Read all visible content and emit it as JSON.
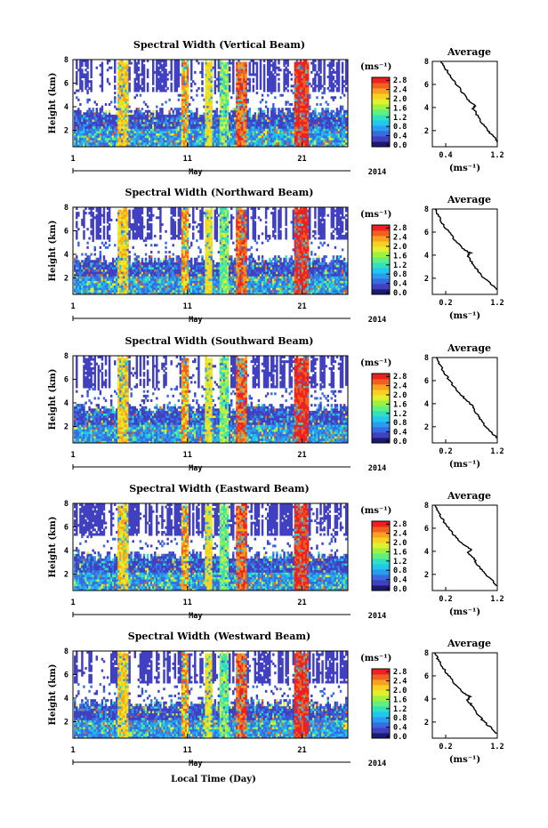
{
  "figure": {
    "xlabel": "Local Time (Day)",
    "month_label": "May",
    "year_label": "2014",
    "ylabel": "Height (km)",
    "colorbar_unit": "(ms⁻¹)",
    "profile_title": "Average",
    "profile_xlabel": "(ms⁻¹)"
  },
  "chart_data": [
    {
      "type": "heatmap",
      "title": "Spectral Width (Vertical Beam)",
      "ylabel": "Height (km)",
      "xlabel": "Local Time (Day)",
      "x_ticks": [
        "1",
        "11",
        "21"
      ],
      "y_ticks": [
        "2",
        "4",
        "6",
        "8"
      ],
      "ylim": [
        0.6,
        8
      ],
      "xlim": [
        1,
        25
      ],
      "colorbar": {
        "ticks": [
          "0.0",
          "0.4",
          "0.8",
          "1.2",
          "1.6",
          "2.0",
          "2.4",
          "2.8"
        ],
        "range": [
          0,
          3.0
        ],
        "colors": [
          "#1a1a6e",
          "#4040c0",
          "#3a6ae0",
          "#2a9cf0",
          "#20c8f0",
          "#30e0c0",
          "#60f080",
          "#a0f040",
          "#e0f030",
          "#f8d020",
          "#f8a020",
          "#f06020",
          "#f02020"
        ]
      },
      "profile": {
        "type": "line",
        "title": "Average",
        "xlabel": "(ms⁻¹)",
        "xlim": [
          0.2,
          1.2
        ],
        "x_ticks": [
          "0.4",
          "1.2"
        ],
        "ylim": [
          0.6,
          8
        ],
        "y_ticks": [
          "2",
          "4",
          "6",
          "8"
        ],
        "x": [
          1.2,
          1.15,
          1.05,
          0.98,
          0.92,
          0.88,
          0.82,
          0.86,
          0.76,
          0.68,
          0.6,
          0.52,
          0.45,
          0.38,
          0.34
        ],
        "y": [
          1.0,
          1.5,
          2.0,
          2.5,
          3.0,
          3.5,
          3.9,
          4.2,
          4.6,
          5.2,
          5.8,
          6.4,
          7.0,
          7.5,
          8.0
        ]
      }
    },
    {
      "type": "heatmap",
      "title": "Spectral Width (Northward Beam)",
      "ylabel": "Height (km)",
      "xlabel": "Local Time (Day)",
      "x_ticks": [
        "1",
        "11",
        "21"
      ],
      "y_ticks": [
        "2",
        "4",
        "6",
        "8"
      ],
      "ylim": [
        0.6,
        8
      ],
      "xlim": [
        1,
        25
      ],
      "colorbar": {
        "ticks": [
          "0.0",
          "0.4",
          "0.8",
          "1.2",
          "1.6",
          "2.0",
          "2.4",
          "2.8"
        ],
        "range": [
          0,
          3.0
        ],
        "colors": [
          "#1a1a6e",
          "#4040c0",
          "#3a6ae0",
          "#2a9cf0",
          "#20c8f0",
          "#30e0c0",
          "#60f080",
          "#a0f040",
          "#e0f030",
          "#f8d020",
          "#f8a020",
          "#f06020",
          "#f02020"
        ]
      },
      "profile": {
        "type": "line",
        "title": "Average",
        "xlabel": "(ms⁻¹)",
        "xlim": [
          0.2,
          1.2
        ],
        "x_ticks": [
          "0.2",
          "1.2"
        ],
        "ylim": [
          0.6,
          8
        ],
        "y_ticks": [
          "2",
          "4",
          "6",
          "8"
        ],
        "x": [
          1.2,
          1.1,
          1.0,
          0.92,
          0.86,
          0.8,
          0.74,
          0.78,
          0.66,
          0.56,
          0.48,
          0.4,
          0.33,
          0.28,
          0.24
        ],
        "y": [
          1.0,
          1.5,
          2.0,
          2.5,
          3.0,
          3.5,
          3.9,
          4.2,
          4.6,
          5.2,
          5.8,
          6.4,
          7.0,
          7.5,
          8.0
        ]
      }
    },
    {
      "type": "heatmap",
      "title": "Spectral Width (Southward Beam)",
      "ylabel": "Height (km)",
      "xlabel": "Local Time (Day)",
      "x_ticks": [
        "1",
        "11",
        "21"
      ],
      "y_ticks": [
        "2",
        "4",
        "6",
        "8"
      ],
      "ylim": [
        0.6,
        8
      ],
      "xlim": [
        1,
        25
      ],
      "colorbar": {
        "ticks": [
          "0.0",
          "0.4",
          "0.8",
          "1.2",
          "1.6",
          "2.0",
          "2.4",
          "2.8"
        ],
        "range": [
          0,
          3.0
        ],
        "colors": [
          "#1a1a6e",
          "#4040c0",
          "#3a6ae0",
          "#2a9cf0",
          "#20c8f0",
          "#30e0c0",
          "#60f080",
          "#a0f040",
          "#e0f030",
          "#f8d020",
          "#f8a020",
          "#f06020",
          "#f02020"
        ]
      },
      "profile": {
        "type": "line",
        "title": "Average",
        "xlabel": "(ms⁻¹)",
        "xlim": [
          0.2,
          1.2
        ],
        "x_ticks": [
          "0.2",
          "1.2"
        ],
        "ylim": [
          0.6,
          8
        ],
        "y_ticks": [
          "2",
          "4",
          "6",
          "8"
        ],
        "x": [
          1.2,
          1.12,
          1.02,
          0.95,
          0.9,
          0.84,
          0.8,
          0.72,
          0.64,
          0.56,
          0.48,
          0.42,
          0.35,
          0.3,
          0.26
        ],
        "y": [
          1.0,
          1.5,
          2.0,
          2.5,
          3.0,
          3.5,
          3.9,
          4.3,
          4.8,
          5.3,
          5.9,
          6.4,
          7.0,
          7.5,
          8.0
        ]
      }
    },
    {
      "type": "heatmap",
      "title": "Spectral Width (Eastward Beam)",
      "ylabel": "Height (km)",
      "xlabel": "Local Time (Day)",
      "x_ticks": [
        "1",
        "11",
        "21"
      ],
      "y_ticks": [
        "2",
        "4",
        "6",
        "8"
      ],
      "ylim": [
        0.6,
        8
      ],
      "xlim": [
        1,
        25
      ],
      "colorbar": {
        "ticks": [
          "0.0",
          "0.4",
          "0.8",
          "1.2",
          "1.6",
          "2.0",
          "2.4",
          "2.8"
        ],
        "range": [
          0,
          3.0
        ],
        "colors": [
          "#1a1a6e",
          "#4040c0",
          "#3a6ae0",
          "#2a9cf0",
          "#20c8f0",
          "#30e0c0",
          "#60f080",
          "#a0f040",
          "#e0f030",
          "#f8d020",
          "#f8a020",
          "#f06020",
          "#f02020"
        ]
      },
      "profile": {
        "type": "line",
        "title": "Average",
        "xlabel": "(ms⁻¹)",
        "xlim": [
          0.2,
          1.2
        ],
        "x_ticks": [
          "0.2",
          "1.2"
        ],
        "ylim": [
          0.6,
          8
        ],
        "y_ticks": [
          "2",
          "4",
          "6",
          "8"
        ],
        "x": [
          1.2,
          1.12,
          1.02,
          0.94,
          0.88,
          0.82,
          0.76,
          0.8,
          0.66,
          0.56,
          0.48,
          0.4,
          0.33,
          0.28,
          0.24
        ],
        "y": [
          1.0,
          1.5,
          2.0,
          2.5,
          3.0,
          3.5,
          3.9,
          4.2,
          4.6,
          5.2,
          5.8,
          6.4,
          7.0,
          7.5,
          8.0
        ]
      }
    },
    {
      "type": "heatmap",
      "title": "Spectral Width (Westward Beam)",
      "ylabel": "Height (km)",
      "xlabel": "Local Time (Day)",
      "x_ticks": [
        "1",
        "11",
        "21"
      ],
      "y_ticks": [
        "2",
        "4",
        "6",
        "8"
      ],
      "ylim": [
        0.6,
        8
      ],
      "xlim": [
        1,
        25
      ],
      "colorbar": {
        "ticks": [
          "0.0",
          "0.4",
          "0.8",
          "1.2",
          "1.6",
          "2.0",
          "2.4",
          "2.8"
        ],
        "range": [
          0,
          3.0
        ],
        "colors": [
          "#1a1a6e",
          "#4040c0",
          "#3a6ae0",
          "#2a9cf0",
          "#20c8f0",
          "#30e0c0",
          "#60f080",
          "#a0f040",
          "#e0f030",
          "#f8d020",
          "#f8a020",
          "#f06020",
          "#f02020"
        ]
      },
      "profile": {
        "type": "line",
        "title": "Average",
        "xlabel": "(ms⁻¹)",
        "xlim": [
          0.2,
          1.2
        ],
        "x_ticks": [
          "0.2",
          "1.2"
        ],
        "ylim": [
          0.6,
          8
        ],
        "y_ticks": [
          "2",
          "4",
          "6",
          "8"
        ],
        "x": [
          1.2,
          1.1,
          1.0,
          0.92,
          0.86,
          0.8,
          0.74,
          0.78,
          0.66,
          0.56,
          0.48,
          0.4,
          0.33,
          0.28,
          0.24
        ],
        "y": [
          1.0,
          1.5,
          2.0,
          2.5,
          3.0,
          3.5,
          3.9,
          4.2,
          4.6,
          5.2,
          5.8,
          6.4,
          7.0,
          7.5,
          8.0
        ]
      }
    }
  ]
}
